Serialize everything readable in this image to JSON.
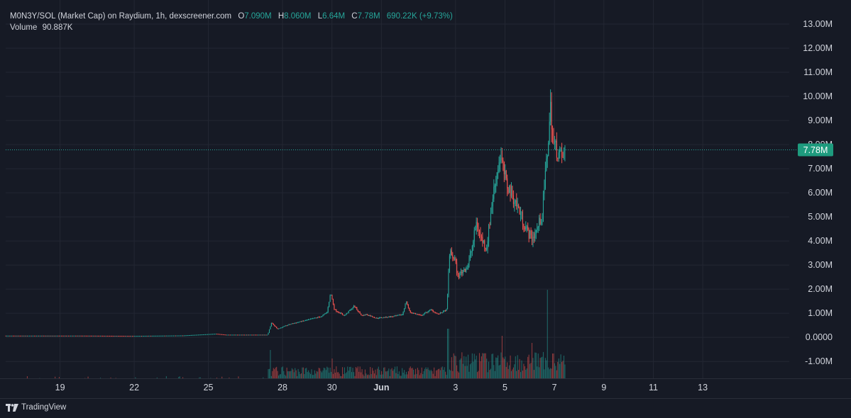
{
  "legend": {
    "symbol": "M0N3Y/SOL (Market Cap) on Raydium, 1h, dexscreener.com",
    "open_label": "O",
    "open": "7.090M",
    "high_label": "H",
    "high": "8.060M",
    "low_label": "L",
    "low": "6.64M",
    "close_label": "C",
    "close": "7.78M",
    "change": "690.22K (+9.73%)",
    "volume_label": "Volume",
    "volume": "90.887K"
  },
  "price_tag": "7.78M",
  "brand": "TradingView",
  "colors": {
    "up": "#26a69a",
    "down": "#ef5350",
    "background": "#161a25",
    "grid": "#232733",
    "price_tag": "#1e9b7e"
  },
  "chart_data": {
    "type": "candlestick",
    "y_axis": {
      "ticks": [
        -1000000,
        0,
        1000000,
        2000000,
        3000000,
        4000000,
        5000000,
        6000000,
        7000000,
        8000000,
        9000000,
        10000000,
        11000000,
        12000000,
        13000000
      ],
      "tick_labels": [
        "-1.00M",
        "0.0000",
        "1.00M",
        "2.00M",
        "3.00M",
        "4.00M",
        "5.00M",
        "6.00M",
        "7.00M",
        "8.00M",
        "9.00M",
        "10.00M",
        "11.00M",
        "12.00M",
        "13.00M"
      ],
      "range": [
        -1700000,
        14000000
      ],
      "position": "right"
    },
    "x_axis": {
      "ticks": [
        19,
        22,
        25,
        28,
        30,
        32,
        35,
        37,
        39,
        41,
        43,
        45
      ],
      "tick_labels": [
        "19",
        "22",
        "25",
        "28",
        "30",
        "Jun",
        "3",
        "5",
        "7",
        "9",
        "11",
        "13"
      ],
      "range": [
        16.8,
        48.5
      ]
    },
    "last_price": 7780000,
    "grid": true,
    "keyframes": [
      [
        16.8,
        70000
      ],
      [
        20.0,
        70000
      ],
      [
        22.0,
        60000
      ],
      [
        24.0,
        80000
      ],
      [
        25.3,
        150000
      ],
      [
        25.7,
        110000
      ],
      [
        27.4,
        110000
      ],
      [
        27.55,
        600000
      ],
      [
        27.8,
        350000
      ],
      [
        28.3,
        550000
      ],
      [
        29.0,
        720000
      ],
      [
        29.6,
        880000
      ],
      [
        29.8,
        1050000
      ],
      [
        29.95,
        1850000
      ],
      [
        30.1,
        1150000
      ],
      [
        30.5,
        900000
      ],
      [
        30.9,
        1300000
      ],
      [
        31.2,
        900000
      ],
      [
        31.4,
        950000
      ],
      [
        31.8,
        800000
      ],
      [
        32.5,
        870000
      ],
      [
        32.85,
        950000
      ],
      [
        33.0,
        1500000
      ],
      [
        33.15,
        1050000
      ],
      [
        33.6,
        900000
      ],
      [
        34.0,
        1150000
      ],
      [
        34.3,
        960000
      ],
      [
        34.65,
        1150000
      ],
      [
        34.75,
        3500000
      ],
      [
        34.95,
        3300000
      ],
      [
        35.1,
        2500000
      ],
      [
        35.3,
        2800000
      ],
      [
        35.5,
        2950000
      ],
      [
        35.7,
        3900000
      ],
      [
        35.85,
        4800000
      ],
      [
        36.0,
        4200000
      ],
      [
        36.25,
        3700000
      ],
      [
        36.5,
        5800000
      ],
      [
        36.8,
        7600000
      ],
      [
        37.05,
        6400000
      ],
      [
        37.35,
        5800000
      ],
      [
        37.6,
        5200000
      ],
      [
        37.9,
        4400000
      ],
      [
        38.1,
        4100000
      ],
      [
        38.3,
        4500000
      ],
      [
        38.5,
        5100000
      ],
      [
        38.7,
        7500000
      ],
      [
        38.85,
        9600000
      ],
      [
        38.95,
        8000000
      ],
      [
        39.1,
        7800000
      ],
      [
        39.3,
        7400000
      ],
      [
        39.45,
        7780000
      ]
    ],
    "volume": {
      "unit": "relative",
      "range": [
        0,
        140
      ],
      "spikes": [
        [
          27.5,
          40
        ],
        [
          30.0,
          28
        ],
        [
          34.7,
          70
        ],
        [
          36.9,
          60
        ],
        [
          38.1,
          50
        ],
        [
          38.72,
          125
        ],
        [
          38.95,
          35
        ]
      ]
    }
  }
}
